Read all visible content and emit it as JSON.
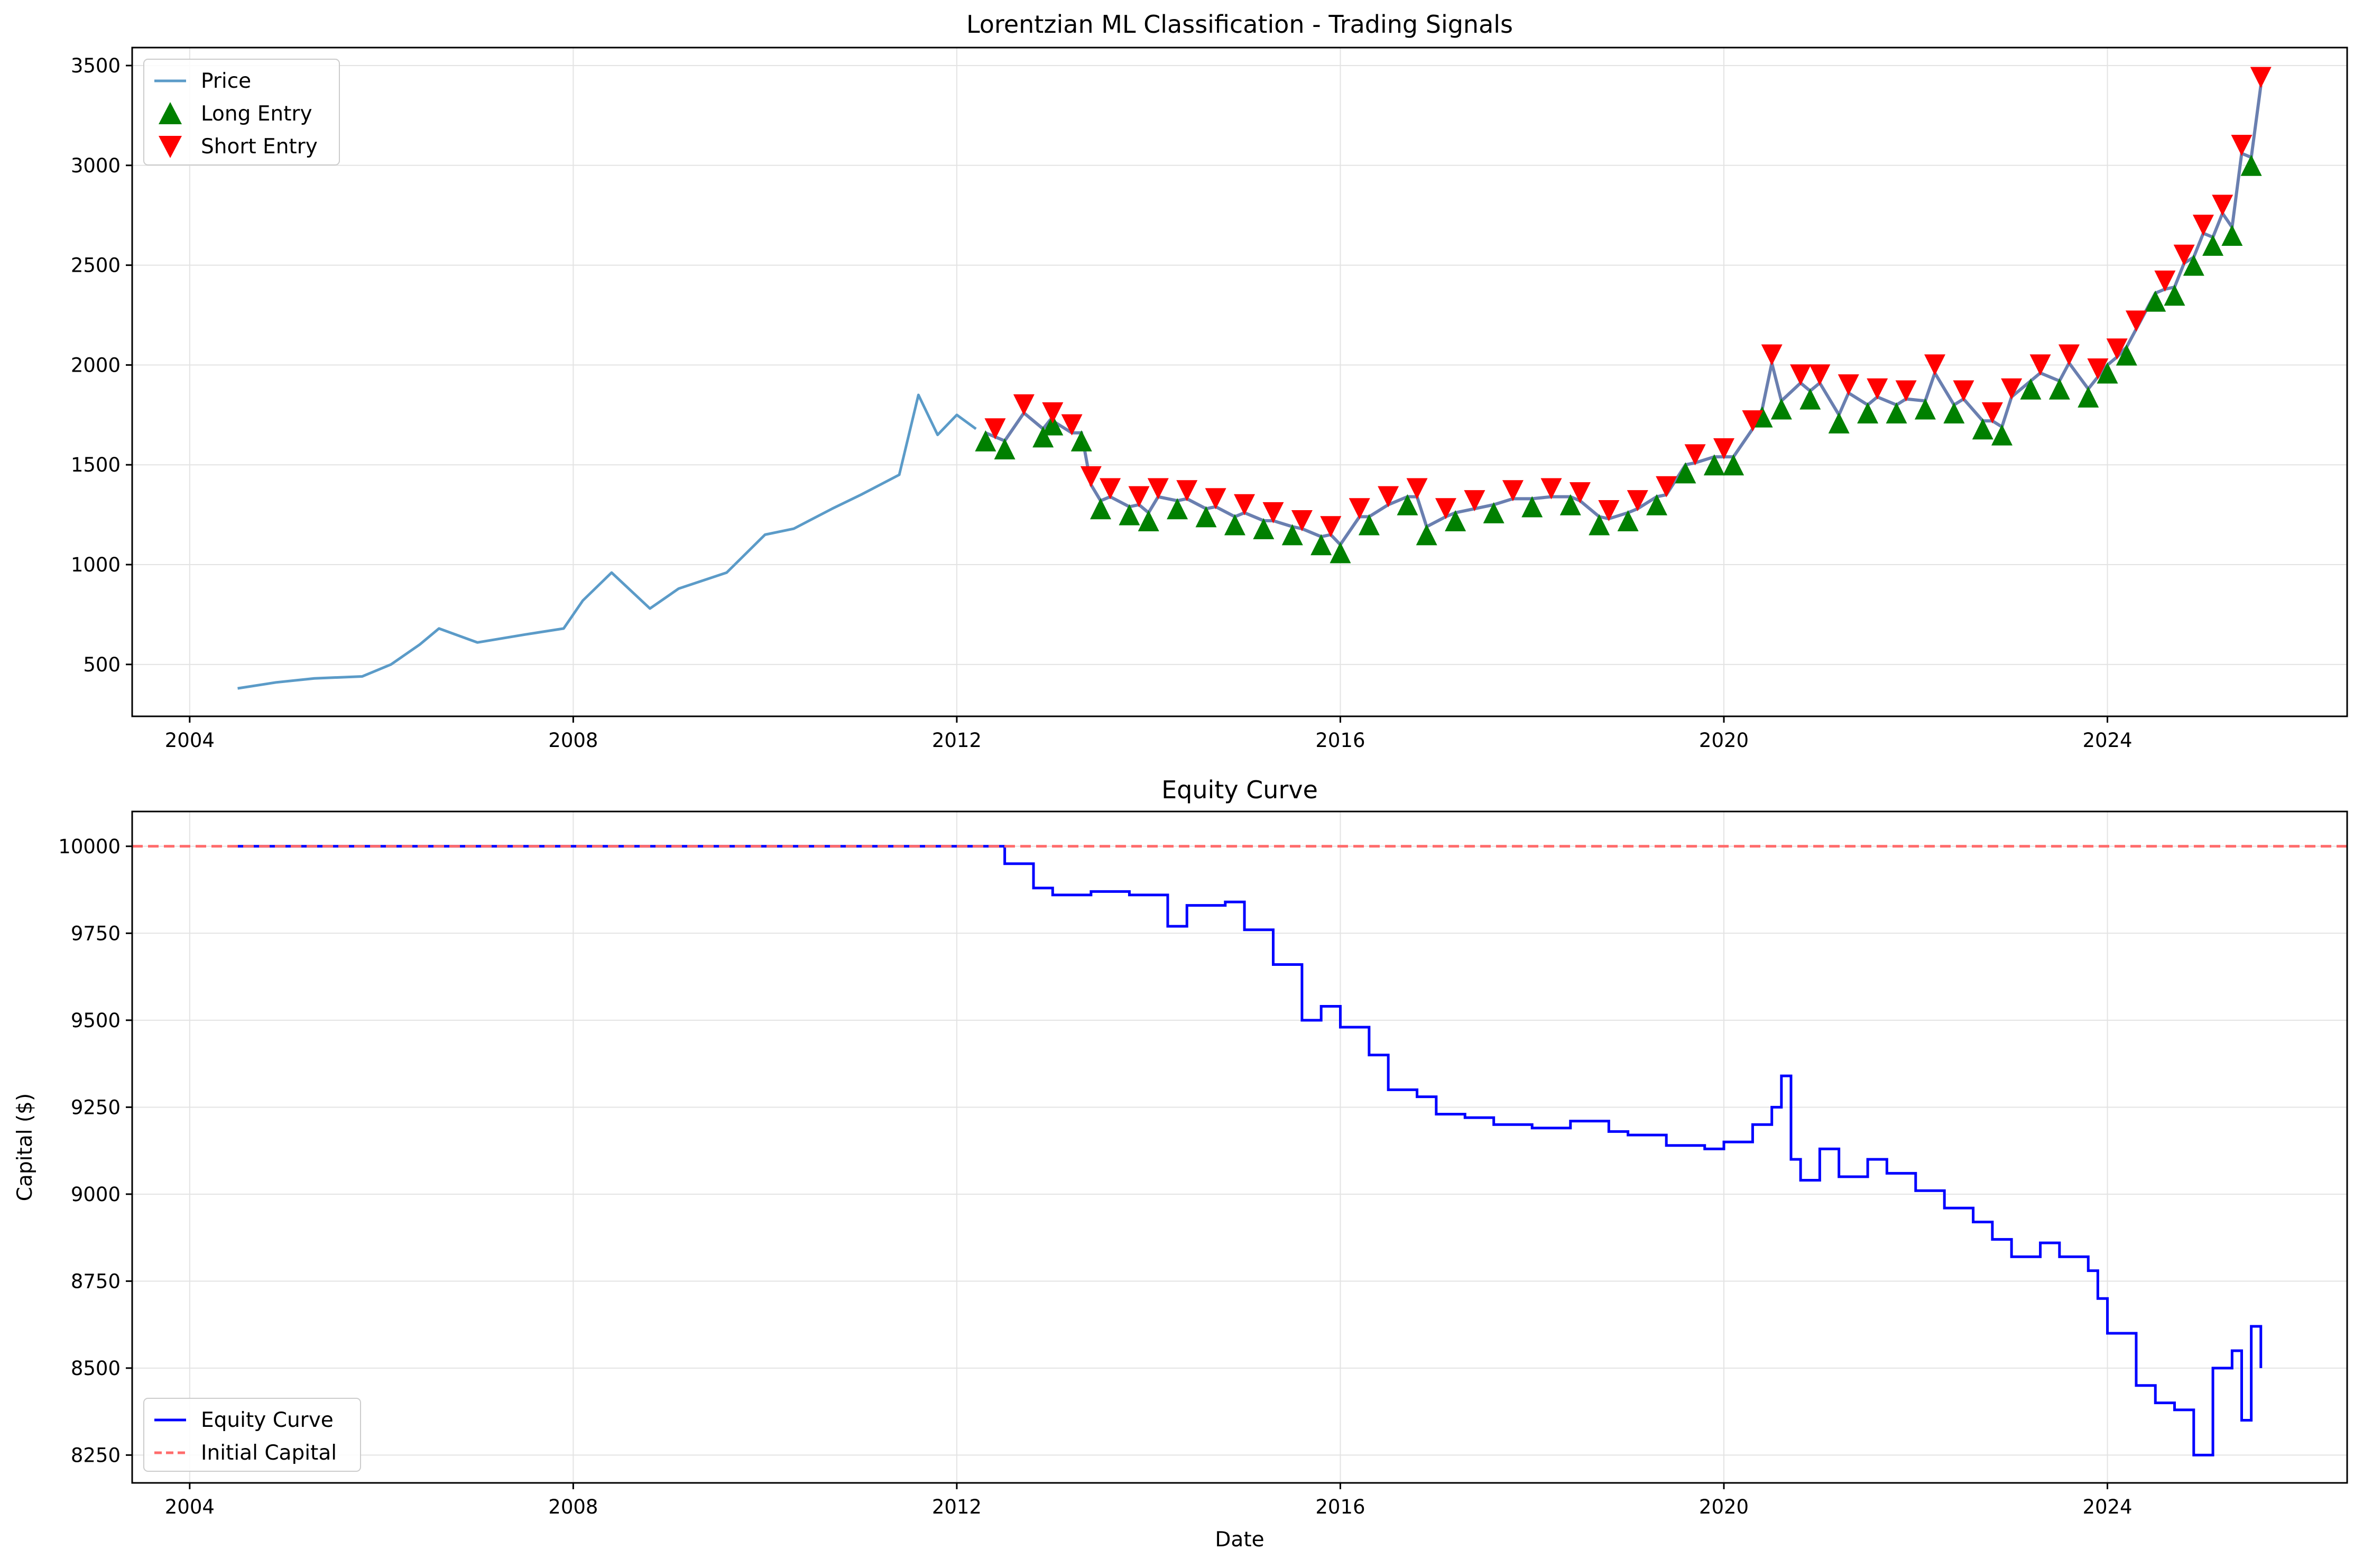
{
  "chart_data": [
    {
      "type": "line",
      "title": "Lorentzian ML Classification - Trading Signals",
      "xlabel": "",
      "ylabel": "",
      "x_axis": "date",
      "xlim": [
        2003.4,
        2026.5
      ],
      "ylim": [
        240,
        3590
      ],
      "x_ticks": [
        2004,
        2008,
        2012,
        2016,
        2020,
        2024
      ],
      "x_tick_labels": [
        "2004",
        "2008",
        "2012",
        "2016",
        "2020",
        "2024"
      ],
      "y_ticks": [
        500,
        1000,
        1500,
        2000,
        2500,
        3000,
        3500
      ],
      "y_tick_labels": [
        "500",
        "1000",
        "1500",
        "2000",
        "2500",
        "3000",
        "3500"
      ],
      "grid": true,
      "legend_position": "upper-left",
      "colors": {
        "price": "#5b9bc8",
        "long": "#008000",
        "short": "#ff0000",
        "signal_line": "#6a7fb0"
      },
      "series": [
        {
          "name": "Price",
          "kind": "line",
          "x": [
            2004.5,
            2004.9,
            2005.3,
            2005.8,
            2006.1,
            2006.4,
            2006.6,
            2007.0,
            2007.5,
            2007.9,
            2008.1,
            2008.4,
            2008.8,
            2009.1,
            2009.6,
            2010.0,
            2010.3,
            2010.7,
            2011.0,
            2011.4,
            2011.6,
            2011.8,
            2012.0,
            2012.2
          ],
          "y": [
            380,
            410,
            430,
            440,
            500,
            600,
            680,
            610,
            650,
            680,
            820,
            960,
            780,
            880,
            960,
            1150,
            1180,
            1280,
            1350,
            1450,
            1850,
            1650,
            1750,
            1680
          ]
        },
        {
          "name": "Long Entry",
          "kind": "markers",
          "marker": "triangle-up",
          "x": [
            2012.3,
            2012.5,
            2012.9,
            2013.0,
            2013.3,
            2013.5,
            2013.8,
            2014.0,
            2014.3,
            2014.6,
            2014.9,
            2015.2,
            2015.5,
            2015.8,
            2016.0,
            2016.3,
            2016.7,
            2016.9,
            2017.2,
            2017.6,
            2018.0,
            2018.4,
            2018.7,
            2019.0,
            2019.3,
            2019.6,
            2019.9,
            2020.1,
            2020.4,
            2020.6,
            2020.9,
            2021.2,
            2021.5,
            2021.8,
            2022.1,
            2022.4,
            2022.7,
            2022.9,
            2023.2,
            2023.5,
            2023.8,
            2024.0,
            2024.2,
            2024.5,
            2024.7,
            2024.9,
            2025.1,
            2025.3,
            2025.5
          ],
          "y": [
            1620,
            1580,
            1640,
            1700,
            1620,
            1280,
            1250,
            1220,
            1280,
            1240,
            1200,
            1180,
            1150,
            1100,
            1060,
            1200,
            1300,
            1150,
            1220,
            1260,
            1290,
            1300,
            1200,
            1220,
            1300,
            1460,
            1500,
            1500,
            1740,
            1780,
            1830,
            1710,
            1760,
            1760,
            1780,
            1760,
            1680,
            1650,
            1880,
            1880,
            1840,
            1960,
            2050,
            2320,
            2350,
            2500,
            2600,
            2650,
            3000
          ]
        },
        {
          "name": "Short Entry",
          "kind": "markers",
          "marker": "triangle-down",
          "x": [
            2012.4,
            2012.7,
            2013.0,
            2013.2,
            2013.4,
            2013.6,
            2013.9,
            2014.1,
            2014.4,
            2014.7,
            2015.0,
            2015.3,
            2015.6,
            2015.9,
            2016.2,
            2016.5,
            2016.8,
            2017.1,
            2017.4,
            2017.8,
            2018.2,
            2018.5,
            2018.8,
            2019.1,
            2019.4,
            2019.7,
            2020.0,
            2020.3,
            2020.5,
            2020.8,
            2021.0,
            2021.3,
            2021.6,
            2021.9,
            2022.2,
            2022.5,
            2022.8,
            2023.0,
            2023.3,
            2023.6,
            2023.9,
            2024.1,
            2024.3,
            2024.6,
            2024.8,
            2025.0,
            2025.2,
            2025.4,
            2025.6
          ],
          "y": [
            1680,
            1800,
            1760,
            1700,
            1440,
            1380,
            1340,
            1380,
            1370,
            1330,
            1300,
            1260,
            1220,
            1190,
            1280,
            1340,
            1380,
            1280,
            1320,
            1370,
            1380,
            1360,
            1270,
            1320,
            1390,
            1550,
            1580,
            1720,
            2050,
            1950,
            1950,
            1900,
            1880,
            1870,
            2000,
            1870,
            1760,
            1880,
            2000,
            2050,
            1980,
            2080,
            2220,
            2420,
            2550,
            2700,
            2800,
            3100,
            3440
          ]
        }
      ]
    },
    {
      "type": "line",
      "title": "Equity Curve",
      "xlabel": "Date",
      "ylabel": "Capital ($)",
      "x_axis": "date",
      "xlim": [
        2003.4,
        2026.5
      ],
      "ylim": [
        8170,
        10100
      ],
      "x_ticks": [
        2004,
        2008,
        2012,
        2016,
        2020,
        2024
      ],
      "x_tick_labels": [
        "2004",
        "2008",
        "2012",
        "2016",
        "2020",
        "2024"
      ],
      "y_ticks": [
        8250,
        8500,
        8750,
        9000,
        9250,
        9500,
        9750,
        10000
      ],
      "y_tick_labels": [
        "8250",
        "8500",
        "8750",
        "9000",
        "9250",
        "9500",
        "9750",
        "10000"
      ],
      "grid": true,
      "legend_position": "lower-left",
      "colors": {
        "equity": "#0000ff",
        "initial": "#ff6b6b"
      },
      "series": [
        {
          "name": "Equity Curve",
          "kind": "step",
          "x": [
            2004.5,
            2012.3,
            2012.5,
            2012.8,
            2013.0,
            2013.4,
            2013.8,
            2014.0,
            2014.2,
            2014.4,
            2014.8,
            2015.0,
            2015.3,
            2015.6,
            2015.8,
            2016.0,
            2016.3,
            2016.5,
            2016.8,
            2017.0,
            2017.3,
            2017.6,
            2018.0,
            2018.4,
            2018.8,
            2019.0,
            2019.4,
            2019.8,
            2020.0,
            2020.3,
            2020.5,
            2020.6,
            2020.7,
            2020.8,
            2021.0,
            2021.2,
            2021.5,
            2021.7,
            2022.0,
            2022.3,
            2022.6,
            2022.8,
            2023.0,
            2023.3,
            2023.5,
            2023.8,
            2023.9,
            2024.0,
            2024.3,
            2024.5,
            2024.7,
            2024.9,
            2025.1,
            2025.3,
            2025.4,
            2025.5,
            2025.6
          ],
          "y": [
            10000,
            10000,
            9950,
            9880,
            9860,
            9870,
            9860,
            9860,
            9770,
            9830,
            9840,
            9760,
            9660,
            9500,
            9540,
            9480,
            9400,
            9300,
            9280,
            9230,
            9220,
            9200,
            9190,
            9210,
            9180,
            9170,
            9140,
            9130,
            9150,
            9200,
            9250,
            9340,
            9100,
            9040,
            9130,
            9050,
            9100,
            9060,
            9010,
            8960,
            8920,
            8870,
            8820,
            8860,
            8820,
            8780,
            8700,
            8600,
            8450,
            8400,
            8380,
            8250,
            8500,
            8550,
            8350,
            8620,
            8500
          ]
        },
        {
          "name": "Initial Capital",
          "kind": "hline",
          "style": "dashed",
          "y": [
            10000
          ]
        }
      ]
    }
  ]
}
